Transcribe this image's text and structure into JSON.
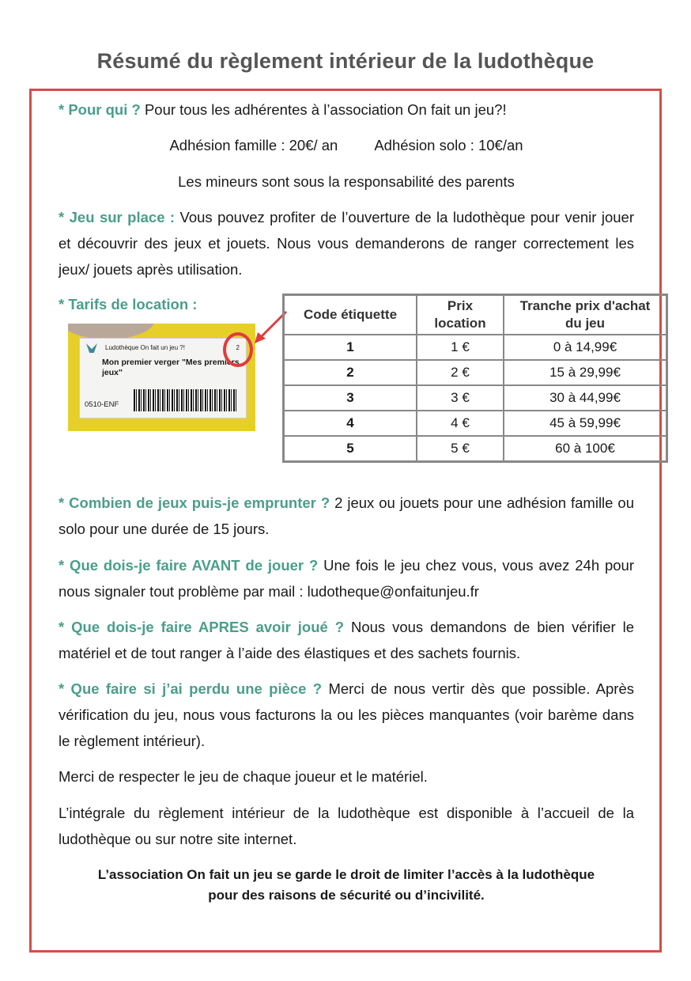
{
  "title": "Résumé du règlement intérieur de la ludothèque",
  "colors": {
    "accent": "#4a9e8a",
    "frame": "#d0504a",
    "title": "#555555"
  },
  "pour_qui": {
    "q": "* Pour qui ?",
    "text": " Pour tous les  adhérentes à l’association On fait un jeu?!"
  },
  "adhesion_famille": "Adhésion famille : 20€/ an",
  "adhesion_solo": "Adhésion solo : 10€/an",
  "mineurs": "Les mineurs sont sous la responsabilité des parents",
  "jeu_sur_place": {
    "q": "* Jeu sur place :",
    "text": " Vous pouvez profiter de l’ouverture de la ludothèque pour venir jouer et découvrir des jeux et jouets. Nous vous demanderons de ranger correctement les jeux/ jouets après utilisation."
  },
  "tarifs": {
    "q": "* Tarifs de location :",
    "photo_label": {
      "header": "Ludothèque On fait un jeu ?!",
      "number": "2",
      "name": "Mon premier verger \"Mes premiers jeux\"",
      "code": "0510-ENF"
    },
    "headers": [
      "Code étiquette",
      "Prix location",
      "Tranche prix d'achat du jeu"
    ],
    "rows": [
      [
        "1",
        "1 €",
        "0 à 14,99€"
      ],
      [
        "2",
        "2 €",
        "15 à 29,99€"
      ],
      [
        "3",
        "3 €",
        "30 à 44,99€"
      ],
      [
        "4",
        "4 €",
        "45 à 59,99€"
      ],
      [
        "5",
        "5 €",
        "60 à 100€"
      ]
    ]
  },
  "combien": {
    "q": "* Combien de jeux puis-je emprunter ?",
    "text": " 2 jeux ou jouets pour une adhésion famille ou solo pour une durée de 15 jours."
  },
  "avant": {
    "q": "* Que dois-je faire AVANT de jouer ?",
    "text": " Une fois le jeu chez vous, vous avez 24h pour nous signaler tout problème par mail : ludotheque@onfaitunjeu.fr"
  },
  "apres": {
    "q": "* Que dois-je faire APRES avoir joué ?",
    "text": " Nous vous demandons de bien vérifier le matériel et de tout ranger à l’aide des élastiques et des sachets fournis."
  },
  "perdu": {
    "q": "* Que faire si j’ai perdu une pièce ?",
    "text": " Merci de nous vertir dès que possible. Après vérification du jeu, nous vous facturons la ou les pièces manquantes (voir barème dans le règlement intérieur)."
  },
  "respect": "Merci de respecter le jeu de chaque joueur et le matériel.",
  "integrale": "L’intégrale du règlement intérieur de la ludothèque est disponible à l’accueil de la ludothèque ou sur notre site internet.",
  "footer_line1": "L’association On fait un jeu se garde le droit de limiter l’accès à la ludothèque",
  "footer_line2": "pour des raisons de sécurité ou d’incivilité."
}
